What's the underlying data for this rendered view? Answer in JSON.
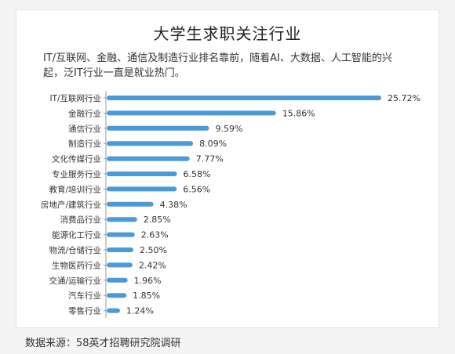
{
  "title": "大学生求职关注行业",
  "subtitle": "IT/互联网、金融、通信及制造行业排名靠前，随着AI、大数据、人工智能的兴起，泛IT行业一直是就业热门。",
  "source": "数据来源：58英才招聘研究院调研",
  "colors": {
    "bar": "#4a9ad8"
  },
  "chart_data": {
    "type": "bar",
    "orientation": "horizontal",
    "categories": [
      "IT/互联网行业",
      "金融行业",
      "通信行业",
      "制造行业",
      "文化传媒行业",
      "专业服务行业",
      "教育/培训行业",
      "房地产/建筑行业",
      "消费品行业",
      "能源化工行业",
      "物流/仓储行业",
      "生物医药行业",
      "交通/运输行业",
      "汽车行业",
      "零售行业"
    ],
    "values": [
      25.72,
      15.86,
      9.59,
      8.09,
      7.77,
      6.58,
      6.56,
      4.38,
      2.85,
      2.63,
      2.5,
      2.42,
      1.96,
      1.85,
      1.24
    ],
    "value_labels": [
      "25.72%",
      "15.86%",
      "9.59%",
      "8.09%",
      "7.77%",
      "6.58%",
      "6.56%",
      "4.38%",
      "2.85%",
      "2.63%",
      "2.50%",
      "2.42%",
      "1.96%",
      "1.85%",
      "1.24%"
    ]
  }
}
